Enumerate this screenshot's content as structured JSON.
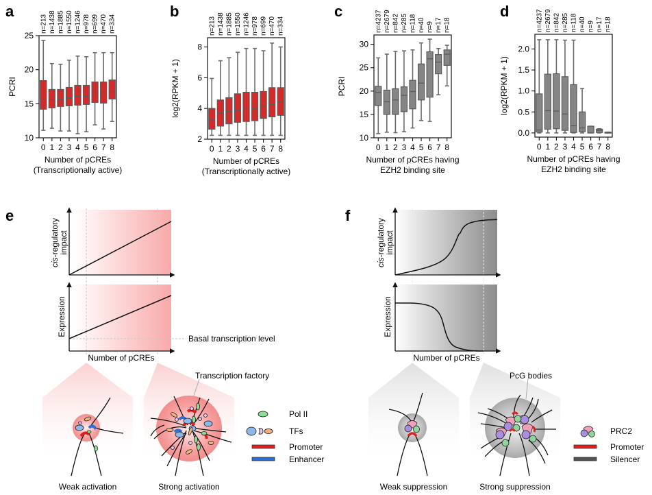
{
  "panel_labels": [
    "a",
    "b",
    "c",
    "d",
    "e",
    "f"
  ],
  "colors": {
    "red_box": "#d42a2a",
    "grey_box": "#858585",
    "box_edge": "#5a5a5a",
    "whisker": "#6b6b6b",
    "red_shade": "#f7a8a8",
    "grey_shade": "#8a8a8a",
    "pol2": "#8fdc96",
    "tf_blue": "#8fb8ea",
    "tf_pink": "#e6c3e8",
    "tf_orange": "#f0b27f",
    "promoter": "#e02020",
    "enhancer": "#2c6fd6",
    "silencer": "#555555",
    "prc2_pink": "#f0a0b8",
    "prc2_purple": "#a88fe0",
    "prc2_green": "#8fd49a"
  },
  "chart_data": [
    {
      "id": "a",
      "type": "box",
      "title": "",
      "xlabel": "Number of pCREs",
      "xlabel2": "(Transcriptionally active)",
      "ylabel": "PCRI",
      "ylim": [
        10,
        25
      ],
      "yticks": [
        "10",
        "15",
        "20",
        "25"
      ],
      "categories": [
        "0",
        "1",
        "2",
        "3",
        "4",
        "5",
        "6",
        "7",
        "8"
      ],
      "n_labels": [
        "n=213",
        "n=1438",
        "n=1885",
        "n=1550",
        "n=1246",
        "n=978",
        "n=699",
        "n=470",
        "n=334"
      ],
      "fill": "red",
      "boxes": [
        {
          "min": 11.1,
          "q1": 14.2,
          "median": 15.6,
          "q3": 18.4,
          "max": 24.3
        },
        {
          "min": 11.4,
          "q1": 14.4,
          "median": 15.6,
          "q3": 17.1,
          "max": 20.9
        },
        {
          "min": 11.0,
          "q1": 14.6,
          "median": 15.7,
          "q3": 17.1,
          "max": 20.8
        },
        {
          "min": 11.0,
          "q1": 14.7,
          "median": 15.9,
          "q3": 17.4,
          "max": 21.4
        },
        {
          "min": 10.6,
          "q1": 14.8,
          "median": 16.1,
          "q3": 17.7,
          "max": 22.0
        },
        {
          "min": 10.9,
          "q1": 14.9,
          "median": 16.1,
          "q3": 17.7,
          "max": 21.9
        },
        {
          "min": 11.9,
          "q1": 15.2,
          "median": 16.6,
          "q3": 18.2,
          "max": 22.5
        },
        {
          "min": 11.3,
          "q1": 15.1,
          "median": 16.6,
          "q3": 18.2,
          "max": 22.5
        },
        {
          "min": 12.4,
          "q1": 15.7,
          "median": 16.8,
          "q3": 18.5,
          "max": 22.5
        }
      ]
    },
    {
      "id": "b",
      "type": "box",
      "title": "",
      "xlabel": "Number of pCREs",
      "xlabel2": "(Transcriptionally active)",
      "ylabel": "log2(RPKM + 1)",
      "ylim": [
        2,
        8.6
      ],
      "yticks": [
        "2",
        "4",
        "6",
        "8"
      ],
      "categories": [
        "0",
        "1",
        "2",
        "3",
        "4",
        "5",
        "6",
        "7",
        "8"
      ],
      "n_labels": [
        "n=213",
        "n=1438",
        "n=1885",
        "n=1550",
        "n=1246",
        "n=978",
        "n=699",
        "n=470",
        "n=334"
      ],
      "fill": "red",
      "boxes": [
        {
          "min": 2.25,
          "q1": 2.65,
          "median": 3.25,
          "q3": 4.0,
          "max": 5.95
        },
        {
          "min": 2.25,
          "q1": 2.85,
          "median": 3.7,
          "q3": 4.55,
          "max": 7.1
        },
        {
          "min": 2.25,
          "q1": 3.0,
          "median": 3.8,
          "q3": 4.7,
          "max": 7.3
        },
        {
          "min": 2.25,
          "q1": 3.1,
          "median": 3.9,
          "q3": 4.95,
          "max": 7.65
        },
        {
          "min": 2.25,
          "q1": 3.15,
          "median": 3.95,
          "q3": 5.05,
          "max": 7.9
        },
        {
          "min": 2.25,
          "q1": 3.2,
          "median": 4.0,
          "q3": 5.05,
          "max": 7.9
        },
        {
          "min": 2.25,
          "q1": 3.35,
          "median": 4.2,
          "q3": 5.1,
          "max": 7.75
        },
        {
          "min": 2.25,
          "q1": 3.45,
          "median": 4.25,
          "q3": 5.35,
          "max": 8.25
        },
        {
          "min": 2.25,
          "q1": 3.55,
          "median": 4.45,
          "q3": 5.35,
          "max": 8.0
        }
      ]
    },
    {
      "id": "c",
      "type": "box",
      "title": "",
      "xlabel": "Number of pCREs having",
      "xlabel2": "EZH2 binding site",
      "ylabel": "PCRI",
      "ylim": [
        10,
        32
      ],
      "yticks": [
        "10",
        "15",
        "20",
        "25",
        "30"
      ],
      "categories": [
        "0",
        "1",
        "2",
        "3",
        "4",
        "5",
        "6",
        "7",
        "8"
      ],
      "n_labels": [
        "n=4237",
        "n=2679",
        "n=842",
        "n=285",
        "n=118",
        "n=40",
        "n=9",
        "n=17",
        "n=18"
      ],
      "fill": "grey",
      "boxes": [
        {
          "min": 10.9,
          "q1": 16.9,
          "median": 19.7,
          "q3": 21.0,
          "max": 27.1
        },
        {
          "min": 11.2,
          "q1": 15.0,
          "median": 17.7,
          "q3": 20.2,
          "max": 27.9
        },
        {
          "min": 11.1,
          "q1": 15.0,
          "median": 18.1,
          "q3": 20.5,
          "max": 28.5
        },
        {
          "min": 11.3,
          "q1": 15.6,
          "median": 19.1,
          "q3": 20.9,
          "max": 28.6
        },
        {
          "min": 12.1,
          "q1": 16.2,
          "median": 19.9,
          "q3": 22.3,
          "max": 28.8
        },
        {
          "min": 13.7,
          "q1": 18.1,
          "median": 21.7,
          "q3": 25.8,
          "max": 30.3
        },
        {
          "min": 13.5,
          "q1": 18.7,
          "median": 26.9,
          "q3": 28.4,
          "max": 31.1
        },
        {
          "min": 19.2,
          "q1": 23.7,
          "median": 26.2,
          "q3": 27.8,
          "max": 29.1
        },
        {
          "min": 21.1,
          "q1": 25.5,
          "median": 27.9,
          "q3": 28.8,
          "max": 29.8
        }
      ]
    },
    {
      "id": "d",
      "type": "box",
      "title": "",
      "xlabel": "Number of pCREs having",
      "xlabel2": "EZH2 binding site",
      "ylabel": "log2(RPKM + 1)",
      "ylim": [
        -0.1,
        2.35
      ],
      "yticks": [
        "0.0",
        "0.5",
        "1.0",
        "1.5",
        "2.0"
      ],
      "categories": [
        "0",
        "1",
        "2",
        "3",
        "4",
        "5",
        "6",
        "7",
        "8"
      ],
      "n_labels": [
        "n=4237",
        "n=2679",
        "n=842",
        "n=285",
        "n=118",
        "n=40",
        "n=9",
        "n=17",
        "n=18"
      ],
      "fill": "grey",
      "boxes": [
        {
          "min": 0.0,
          "q1": 0.02,
          "median": 0.07,
          "q3": 0.93,
          "max": 2.22
        },
        {
          "min": 0.0,
          "q1": 0.09,
          "median": 0.53,
          "q3": 1.4,
          "max": 2.22
        },
        {
          "min": 0.0,
          "q1": 0.1,
          "median": 0.52,
          "q3": 1.41,
          "max": 2.22
        },
        {
          "min": 0.0,
          "q1": 0.06,
          "median": 0.45,
          "q3": 1.34,
          "max": 2.21
        },
        {
          "min": 0.0,
          "q1": 0.01,
          "median": 0.17,
          "q3": 1.15,
          "max": 2.21
        },
        {
          "min": 0.0,
          "q1": 0.03,
          "median": 0.12,
          "q3": 0.5,
          "max": 1.06
        },
        {
          "min": 0.0,
          "q1": 0.0,
          "median": 0.0,
          "q3": 0.16,
          "max": 0.16
        },
        {
          "min": 0.0,
          "q1": 0.01,
          "median": 0.06,
          "q3": 0.09,
          "max": 0.1
        },
        {
          "min": 0.0,
          "q1": 0.0,
          "median": 0.01,
          "q3": 0.02,
          "max": 0.02
        }
      ]
    },
    {
      "id": "e",
      "type": "line",
      "schematic": true,
      "top_ylabel": "cis-regulatory impact",
      "top_ylabel_italic": "cis",
      "bottom_ylabel": "Expression",
      "xlabel": "Number of pCREs",
      "annotation": "Basal transcription level",
      "top_curve": "linear increase from origin",
      "bottom_curve": "linear increase from basal level"
    },
    {
      "id": "f",
      "type": "line",
      "schematic": true,
      "top_ylabel": "cis-regulatory impact",
      "top_ylabel_italic": "cis",
      "bottom_ylabel": "Expression",
      "xlabel": "Number of pCREs",
      "top_curve": "sigmoidal increase",
      "bottom_curve": "sigmoidal decrease to zero"
    }
  ],
  "schematic_e": {
    "left_caption": "Weak activation",
    "right_caption": "Strong activation",
    "callout": "Transcription factory",
    "legend": [
      {
        "glyph": "pol2-icon",
        "label": "Pol II"
      },
      {
        "glyph": "tfs-icon",
        "label": "TFs"
      },
      {
        "glyph": "promoter-icon",
        "label": "Promoter"
      },
      {
        "glyph": "enhancer-icon",
        "label": "Enhancer"
      }
    ]
  },
  "schematic_f": {
    "left_caption": "Weak suppression",
    "right_caption": "Strong suppression",
    "callout": "PcG bodies",
    "legend": [
      {
        "glyph": "prc2-icon",
        "label": "PRC2"
      },
      {
        "glyph": "promoter-icon",
        "label": "Promoter"
      },
      {
        "glyph": "silencer-icon",
        "label": "Silencer"
      }
    ]
  }
}
